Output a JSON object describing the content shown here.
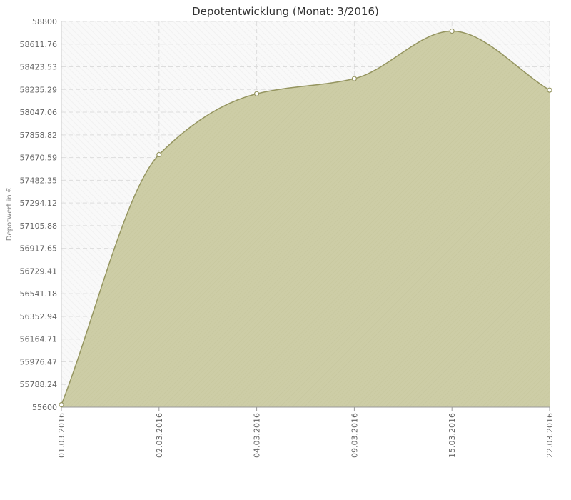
{
  "chart_data": {
    "type": "area",
    "title": "Depotentwicklung (Monat: 3/2016)",
    "xlabel": "",
    "ylabel": "Depotwert in €",
    "categories": [
      "01.03.2016",
      "02.03.2016",
      "04.03.2016",
      "09.03.2016",
      "15.03.2016",
      "22.03.2016"
    ],
    "values": [
      55620,
      57695,
      58200,
      58325,
      58720,
      58230
    ],
    "ylim": [
      55600,
      58800
    ],
    "y_ticks": [
      "55600",
      "55788.24",
      "55976.47",
      "56164.71",
      "56352.94",
      "56541.18",
      "56729.41",
      "56917.65",
      "57105.88",
      "57294.12",
      "57482.35",
      "57670.59",
      "57858.82",
      "58047.06",
      "58235.29",
      "58423.53",
      "58611.76",
      "58800"
    ],
    "grid": true,
    "legend": "none",
    "colors": {
      "fill": "#cbcba2",
      "line": "#959560",
      "marker_fill": "#ffffff",
      "grid": "#dddddd",
      "plot_bg": "#f8f8f8"
    }
  }
}
